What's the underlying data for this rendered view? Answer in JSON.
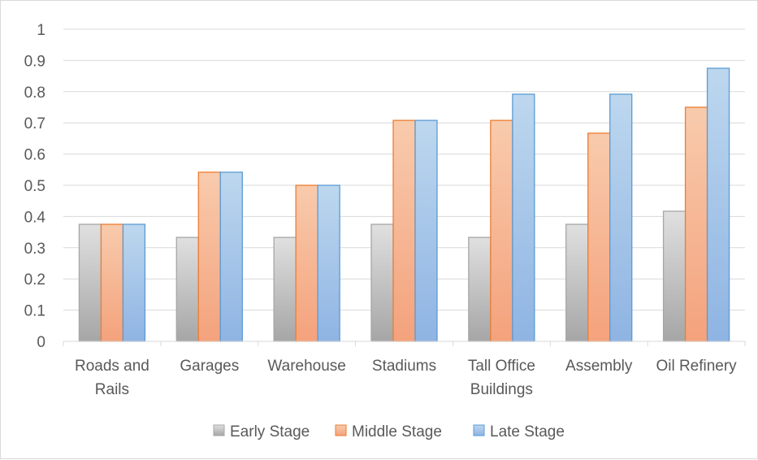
{
  "chart_data": {
    "type": "bar",
    "title": "",
    "xlabel": "",
    "ylabel": "",
    "ylim": [
      0,
      1
    ],
    "yticks": [
      "0",
      "0.1",
      "0.2",
      "0.3",
      "0.4",
      "0.5",
      "0.6",
      "0.7",
      "0.8",
      "0.9",
      "1"
    ],
    "grid": true,
    "legend_position": "bottom",
    "categories": [
      [
        "Roads and",
        "Rails"
      ],
      [
        "Garages"
      ],
      [
        "Warehouse"
      ],
      [
        "Stadiums"
      ],
      [
        "Tall Office",
        "Buildings"
      ],
      [
        "Assembly"
      ],
      [
        "Oil Refinery"
      ]
    ],
    "series": [
      {
        "name": "Early Stage",
        "color": "#bfbfbf",
        "values": [
          0.375,
          0.333,
          0.333,
          0.375,
          0.333,
          0.375,
          0.417
        ]
      },
      {
        "name": "Middle Stage",
        "color": "#f4a582",
        "values": [
          0.375,
          0.542,
          0.5,
          0.708,
          0.708,
          0.667,
          0.75
        ]
      },
      {
        "name": "Late Stage",
        "color": "#9dc3e6",
        "values": [
          0.375,
          0.542,
          0.5,
          0.708,
          0.792,
          0.792,
          0.875
        ]
      }
    ]
  }
}
